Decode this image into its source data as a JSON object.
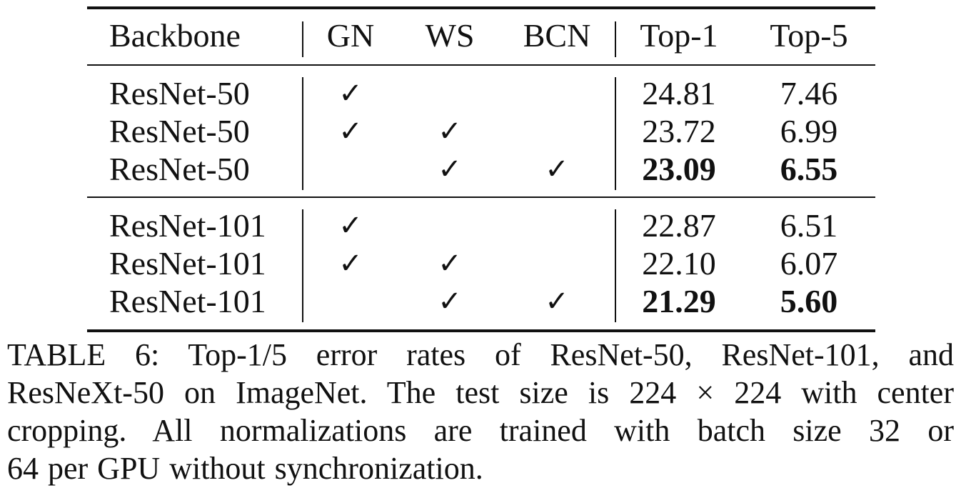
{
  "table": {
    "headers": {
      "backbone": "Backbone",
      "gn": "GN",
      "ws": "WS",
      "bcn": "BCN",
      "top1": "Top-1",
      "top5": "Top-5"
    },
    "check_mark": "✓",
    "rows": [
      {
        "backbone": "ResNet-50",
        "gn": true,
        "ws": false,
        "bcn": false,
        "top1": "24.81",
        "top5": "7.46",
        "bold": false
      },
      {
        "backbone": "ResNet-50",
        "gn": true,
        "ws": true,
        "bcn": false,
        "top1": "23.72",
        "top5": "6.99",
        "bold": false
      },
      {
        "backbone": "ResNet-50",
        "gn": false,
        "ws": true,
        "bcn": true,
        "top1": "23.09",
        "top5": "6.55",
        "bold": true
      },
      {
        "backbone": "ResNet-101",
        "gn": true,
        "ws": false,
        "bcn": false,
        "top1": "22.87",
        "top5": "6.51",
        "bold": false
      },
      {
        "backbone": "ResNet-101",
        "gn": true,
        "ws": true,
        "bcn": false,
        "top1": "22.10",
        "top5": "6.07",
        "bold": false
      },
      {
        "backbone": "ResNet-101",
        "gn": false,
        "ws": true,
        "bcn": true,
        "top1": "21.29",
        "top5": "5.60",
        "bold": true
      }
    ]
  },
  "caption": {
    "lines": [
      "TABLE 6: Top-1/5 error rates of ResNet-50, ResNet-101, and",
      "ResNeXt-50 on ImageNet. The test size is 224 × 224 with center",
      "cropping. All normalizations are trained with batch size 32 or",
      "64 per GPU without synchronization."
    ]
  }
}
